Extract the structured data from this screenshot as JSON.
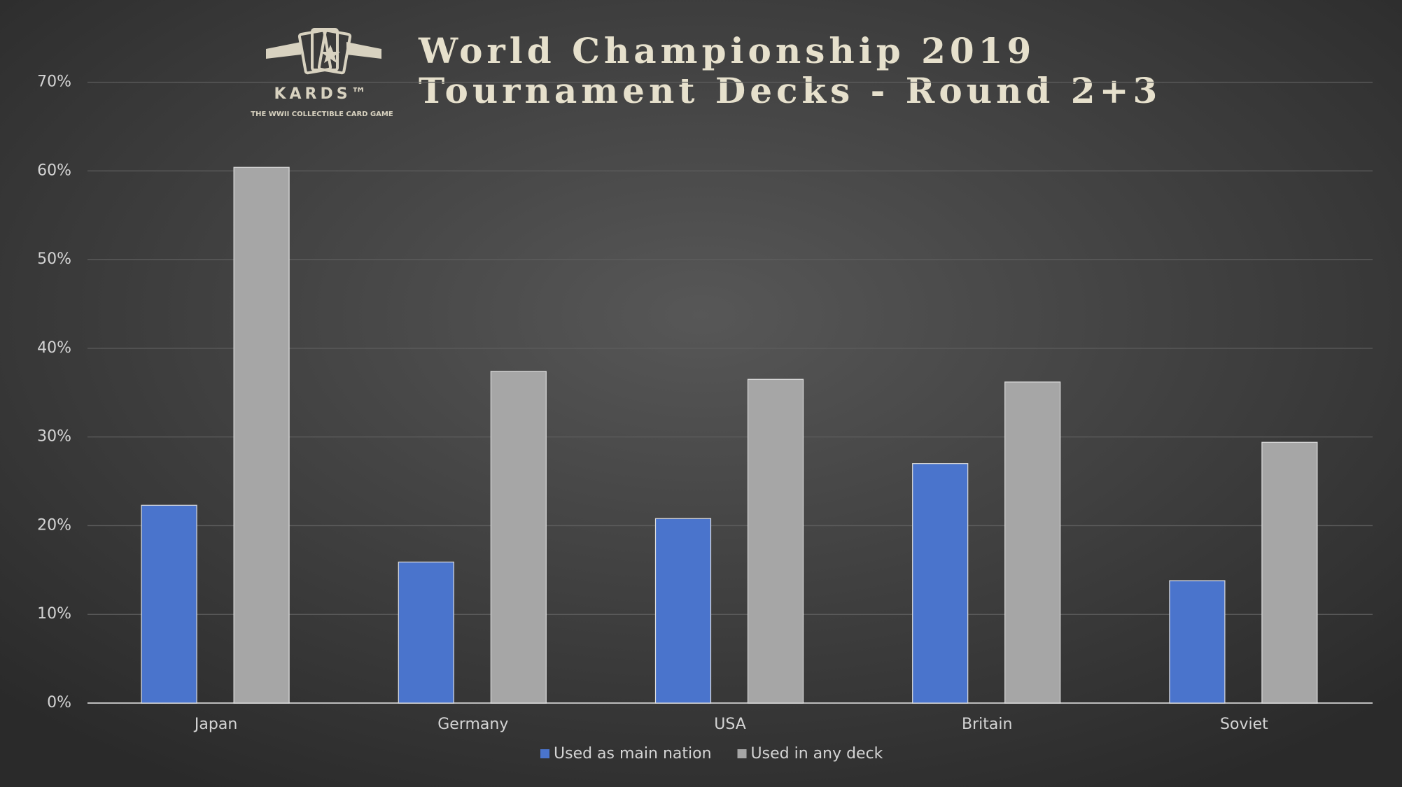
{
  "chart_data": {
    "type": "bar",
    "title": "World Championship 2019",
    "subtitle": "Tournament Decks - Round 2+3",
    "logo": {
      "name": "KARDS™",
      "tagline": "THE WWII COLLECTIBLE CARD GAME"
    },
    "categories": [
      "Japan",
      "Germany",
      "USA",
      "Britain",
      "Soviet"
    ],
    "series": [
      {
        "name": "Used as main nation",
        "color": "#4a74cc",
        "values": [
          22.3,
          15.9,
          20.8,
          27.0,
          13.8
        ]
      },
      {
        "name": "Used in any deck",
        "color": "#a6a6a6",
        "values": [
          60.4,
          37.4,
          36.5,
          36.2,
          29.4
        ]
      }
    ],
    "ylim": [
      0,
      70
    ],
    "yticks": [
      {
        "value": 0,
        "label": "0%"
      },
      {
        "value": 10,
        "label": "10%"
      },
      {
        "value": 20,
        "label": "20%"
      },
      {
        "value": 30,
        "label": "30%"
      },
      {
        "value": 40,
        "label": "40%"
      },
      {
        "value": 50,
        "label": "50%"
      },
      {
        "value": 60,
        "label": "60%"
      },
      {
        "value": 70,
        "label": "70%"
      }
    ],
    "grid": true,
    "legend": "bottom"
  }
}
